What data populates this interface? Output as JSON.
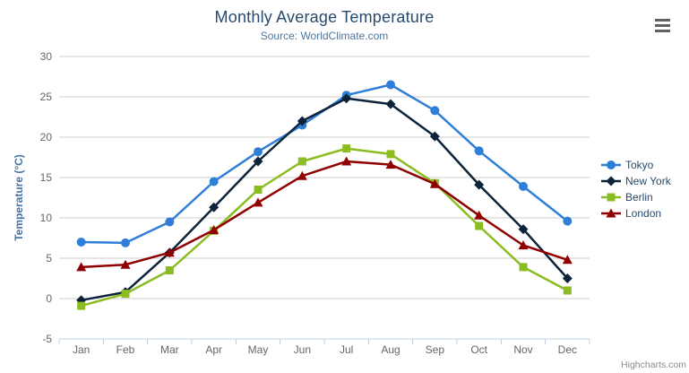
{
  "header": {
    "title": "Monthly Average Temperature",
    "subtitle": "Source: WorldClimate.com"
  },
  "credits_label": "Highcharts.com",
  "icons": {
    "export_menu": "hamburger-menu-icon"
  },
  "palette": {
    "background": "#ffffff",
    "title_color": "#274b6d",
    "subtitle_color": "#4d759e",
    "axis_label_color": "#666666",
    "y_axis_title_color": "#4572a7",
    "gridline_color": "#cccccc",
    "axis_line_color": "#c0d0e0",
    "legend_text_color": "#274b6d",
    "credits_color": "#8a8a8a",
    "export_icon_color": "#616161"
  },
  "chart_data": {
    "type": "line",
    "title": "Monthly Average Temperature",
    "subtitle": "Source: WorldClimate.com",
    "xlabel": "",
    "ylabel": "Temperature (°C)",
    "ylim": [
      -5,
      30
    ],
    "y_ticks": [
      -5,
      0,
      5,
      10,
      15,
      20,
      25,
      30
    ],
    "grid": true,
    "legend_position": "right",
    "categories": [
      "Jan",
      "Feb",
      "Mar",
      "Apr",
      "May",
      "Jun",
      "Jul",
      "Aug",
      "Sep",
      "Oct",
      "Nov",
      "Dec"
    ],
    "series": [
      {
        "name": "Tokyo",
        "color": "#2f7ed8",
        "marker": "circle",
        "values": [
          7.0,
          6.9,
          9.5,
          14.5,
          18.2,
          21.5,
          25.2,
          26.5,
          23.3,
          18.3,
          13.9,
          9.6
        ]
      },
      {
        "name": "New York",
        "color": "#0d233a",
        "marker": "diamond",
        "values": [
          -0.2,
          0.8,
          5.7,
          11.3,
          17.0,
          22.0,
          24.8,
          24.1,
          20.1,
          14.1,
          8.6,
          2.5
        ]
      },
      {
        "name": "Berlin",
        "color": "#8bbc21",
        "marker": "square",
        "values": [
          -0.9,
          0.6,
          3.5,
          8.4,
          13.5,
          17.0,
          18.6,
          17.9,
          14.3,
          9.0,
          3.9,
          1.0
        ]
      },
      {
        "name": "London",
        "color": "#910000",
        "marker": "triangle",
        "values": [
          3.9,
          4.2,
          5.7,
          8.5,
          11.9,
          15.2,
          17.0,
          16.6,
          14.2,
          10.3,
          6.6,
          4.8
        ]
      }
    ]
  }
}
